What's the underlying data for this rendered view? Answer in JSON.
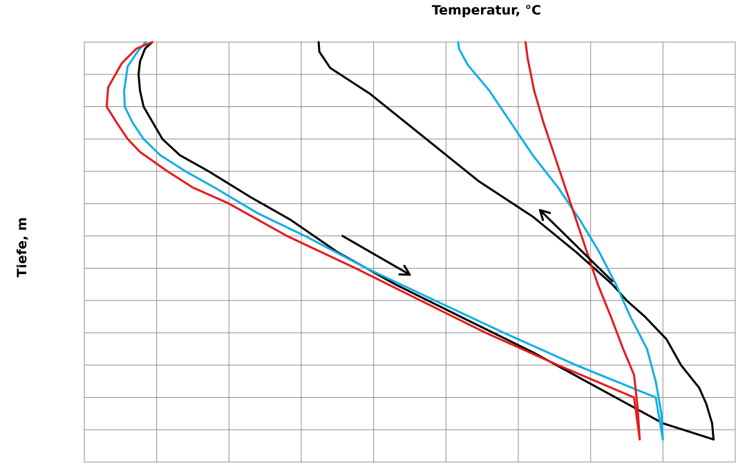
{
  "chart_data": {
    "type": "line",
    "xlabel": "Temperatur, °C",
    "ylabel": "Tiefe, m",
    "xlim": [
      0,
      9
    ],
    "ylim": [
      0,
      13
    ],
    "y_axis_inverted": true,
    "x_axis_position": "top",
    "grid": true,
    "legend": "none",
    "x_gridlines": 9,
    "y_gridlines": 13,
    "series": [
      {
        "color": "#000000",
        "points": [
          [
            0.94,
            0.0
          ],
          [
            0.84,
            0.2
          ],
          [
            0.77,
            0.6
          ],
          [
            0.75,
            1.0
          ],
          [
            0.77,
            1.5
          ],
          [
            0.82,
            2.0
          ],
          [
            0.95,
            2.5
          ],
          [
            1.08,
            3.0
          ],
          [
            1.32,
            3.5
          ],
          [
            1.72,
            4.0
          ],
          [
            2.3,
            4.8
          ],
          [
            2.85,
            5.5
          ],
          [
            3.5,
            6.5
          ],
          [
            4.3,
            7.5
          ],
          [
            5.2,
            8.5
          ],
          [
            6.2,
            9.6
          ],
          [
            7.1,
            10.7
          ],
          [
            8.0,
            11.8
          ],
          [
            8.7,
            12.3
          ]
        ]
      },
      {
        "color": "#000000",
        "points": [
          [
            8.7,
            12.3
          ],
          [
            8.68,
            11.8
          ],
          [
            8.6,
            11.2
          ],
          [
            8.5,
            10.7
          ],
          [
            8.25,
            10.0
          ],
          [
            8.05,
            9.2
          ],
          [
            7.75,
            8.5
          ],
          [
            7.5,
            8.0
          ],
          [
            7.3,
            7.5
          ],
          [
            6.8,
            6.5
          ],
          [
            6.2,
            5.4
          ],
          [
            5.45,
            4.3
          ],
          [
            4.95,
            3.4
          ],
          [
            4.45,
            2.5
          ],
          [
            3.95,
            1.6
          ],
          [
            3.4,
            0.8
          ],
          [
            3.25,
            0.3
          ],
          [
            3.24,
            0.0
          ]
        ]
      },
      {
        "color": "#12aee6",
        "points": [
          [
            0.85,
            0.0
          ],
          [
            0.75,
            0.25
          ],
          [
            0.6,
            0.75
          ],
          [
            0.55,
            1.5
          ],
          [
            0.56,
            2.0
          ],
          [
            0.67,
            2.5
          ],
          [
            0.82,
            3.0
          ],
          [
            1.05,
            3.5
          ],
          [
            1.4,
            4.0
          ],
          [
            1.8,
            4.5
          ],
          [
            2.4,
            5.3
          ],
          [
            3.05,
            6.0
          ],
          [
            3.9,
            7.0
          ],
          [
            4.85,
            8.0
          ],
          [
            5.8,
            9.0
          ],
          [
            6.8,
            10.0
          ],
          [
            7.9,
            11.0
          ],
          [
            8.0,
            12.3
          ]
        ]
      },
      {
        "color": "#12aee6",
        "points": [
          [
            8.0,
            12.3
          ],
          [
            7.98,
            11.5
          ],
          [
            7.9,
            10.5
          ],
          [
            7.78,
            9.5
          ],
          [
            7.55,
            8.5
          ],
          [
            7.35,
            7.5
          ],
          [
            7.12,
            6.5
          ],
          [
            6.85,
            5.5
          ],
          [
            6.55,
            4.5
          ],
          [
            6.2,
            3.5
          ],
          [
            5.9,
            2.5
          ],
          [
            5.6,
            1.5
          ],
          [
            5.3,
            0.7
          ],
          [
            5.18,
            0.2
          ],
          [
            5.17,
            0.0
          ]
        ]
      },
      {
        "color": "#e41a1c",
        "points": [
          [
            0.94,
            0.0
          ],
          [
            0.72,
            0.2
          ],
          [
            0.52,
            0.65
          ],
          [
            0.33,
            1.4
          ],
          [
            0.31,
            2.0
          ],
          [
            0.45,
            2.5
          ],
          [
            0.6,
            3.0
          ],
          [
            0.77,
            3.4
          ],
          [
            1.15,
            4.0
          ],
          [
            1.5,
            4.5
          ],
          [
            2.0,
            5.0
          ],
          [
            2.8,
            6.0
          ],
          [
            3.75,
            7.0
          ],
          [
            4.65,
            8.0
          ],
          [
            5.55,
            9.0
          ],
          [
            6.55,
            10.0
          ],
          [
            7.6,
            11.0
          ],
          [
            7.68,
            12.3
          ]
        ]
      },
      {
        "color": "#e41a1c",
        "points": [
          [
            7.68,
            12.3
          ],
          [
            7.65,
            11.3
          ],
          [
            7.6,
            10.3
          ],
          [
            7.45,
            9.5
          ],
          [
            7.28,
            8.5
          ],
          [
            7.1,
            7.5
          ],
          [
            6.95,
            6.5
          ],
          [
            6.8,
            5.5
          ],
          [
            6.65,
            4.5
          ],
          [
            6.5,
            3.5
          ],
          [
            6.35,
            2.5
          ],
          [
            6.22,
            1.5
          ],
          [
            6.13,
            0.5
          ],
          [
            6.1,
            0.0
          ]
        ]
      }
    ],
    "annotations": [
      {
        "type": "arrow",
        "color": "#000000",
        "from": [
          3.57,
          6.0
        ],
        "to": [
          4.5,
          7.2
        ]
      },
      {
        "type": "arrow",
        "color": "#000000",
        "from": [
          7.3,
          7.4
        ],
        "to": [
          6.3,
          5.2
        ]
      }
    ]
  }
}
